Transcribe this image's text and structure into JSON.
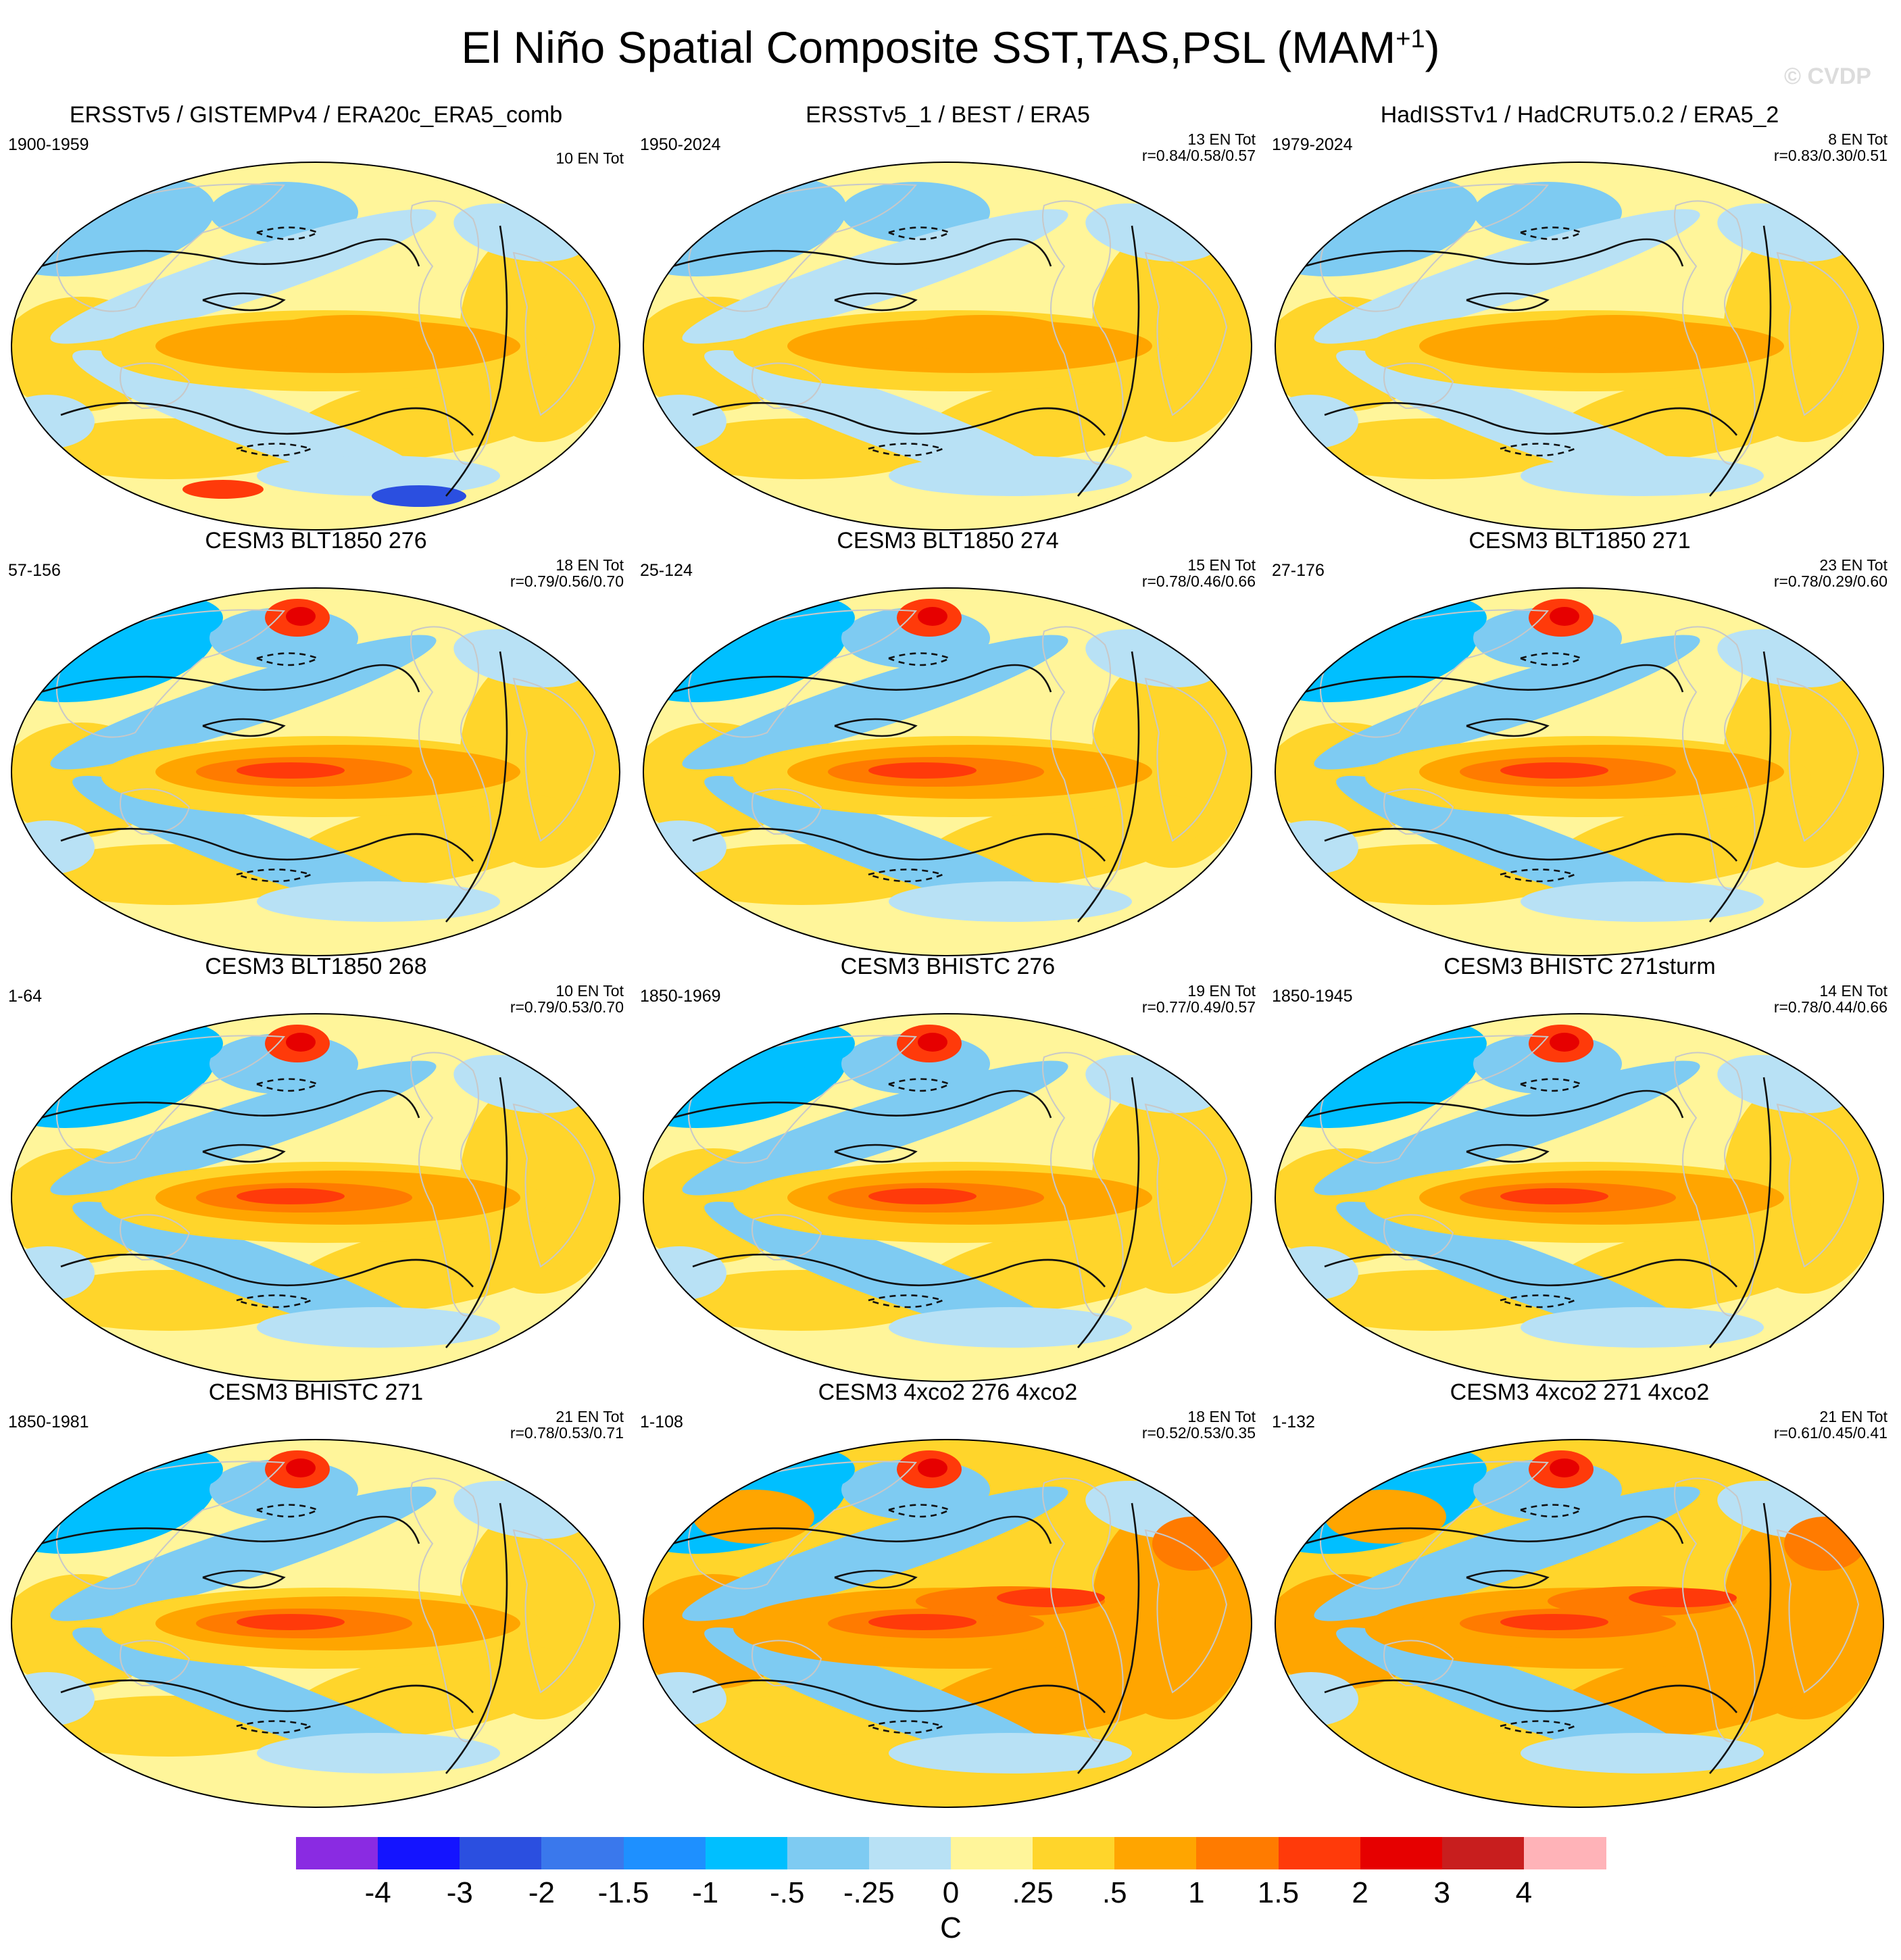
{
  "figure": {
    "title": "El Niño Spatial Composite SST,TAS,PSL (MAM",
    "title_sup": "+1",
    "title_end": ")",
    "watermark": "© CVDP"
  },
  "chart_data": {
    "type": "map-composite",
    "units": "C",
    "colorbar": {
      "ticks": [
        "-4",
        "-3",
        "-2",
        "-1.5",
        "-1",
        "-.5",
        "-.25",
        "0",
        ".25",
        ".5",
        "1",
        "1.5",
        "2",
        "3",
        "4"
      ],
      "colors": [
        "#8a2be2",
        "#1414ff",
        "#2b4fe0",
        "#3a78ec",
        "#1e90ff",
        "#00bfff",
        "#7ecbf2",
        "#b8e1f5",
        "#fff59a",
        "#ffd52b",
        "#ffa500",
        "#ff7b00",
        "#ff3a0a",
        "#e60000",
        "#c81e1e",
        "#ffb3b8"
      ]
    },
    "panels": [
      {
        "title": "ERSSTv5 / GISTEMPv4 / ERA20c_ERA5_comb",
        "years": "1900-1959",
        "count": "10 EN Tot",
        "r": "",
        "style": "obs1"
      },
      {
        "title": "ERSSTv5_1 / BEST / ERA5",
        "years": "1950-2024",
        "count": "13 EN Tot",
        "r": "r=0.84/0.58/0.57",
        "style": "obs2"
      },
      {
        "title": "HadISSTv1 / HadCRUT5.0.2 / ERA5_2",
        "years": "1979-2024",
        "count": "8 EN Tot",
        "r": "r=0.83/0.30/0.51",
        "style": "obs3"
      },
      {
        "title": "CESM3 BLT1850 276",
        "years": "57-156",
        "count": "18 EN Tot",
        "r": "r=0.79/0.56/0.70",
        "style": "model"
      },
      {
        "title": "CESM3 BLT1850 274",
        "years": "25-124",
        "count": "15 EN Tot",
        "r": "r=0.78/0.46/0.66",
        "style": "model"
      },
      {
        "title": "CESM3 BLT1850 271",
        "years": "27-176",
        "count": "23 EN Tot",
        "r": "r=0.78/0.29/0.60",
        "style": "model"
      },
      {
        "title": "CESM3 BLT1850 268",
        "years": "1-64",
        "count": "10 EN Tot",
        "r": "r=0.79/0.53/0.70",
        "style": "model"
      },
      {
        "title": "CESM3 BHISTC 276",
        "years": "1850-1969",
        "count": "19 EN Tot",
        "r": "r=0.77/0.49/0.57",
        "style": "model"
      },
      {
        "title": "CESM3 BHISTC 271sturm",
        "years": "1850-1945",
        "count": "14 EN Tot",
        "r": "r=0.78/0.44/0.66",
        "style": "model"
      },
      {
        "title": "CESM3 BHISTC 271",
        "years": "1850-1981",
        "count": "21 EN Tot",
        "r": "r=0.78/0.53/0.71",
        "style": "model"
      },
      {
        "title": "CESM3 4xco2 276 4xco2",
        "years": "1-108",
        "count": "18 EN Tot",
        "r": "r=0.52/0.53/0.35",
        "style": "warm"
      },
      {
        "title": "CESM3 4xco2 271 4xco2",
        "years": "1-132",
        "count": "21 EN Tot",
        "r": "r=0.61/0.45/0.41",
        "style": "warm"
      }
    ]
  }
}
